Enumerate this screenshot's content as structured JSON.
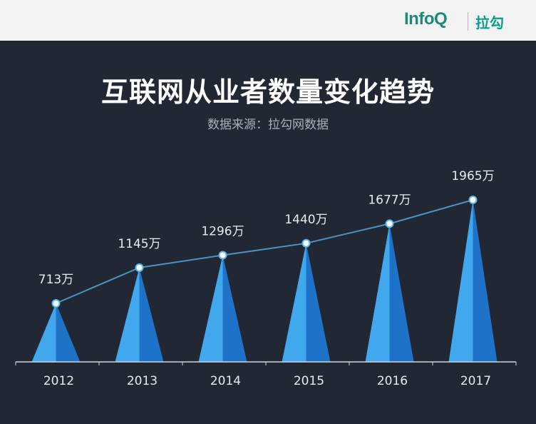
{
  "header": {
    "logo_infoq": "InfoQ",
    "logo_lagou": "拉勾",
    "brand_color": "#1c8a7a"
  },
  "chart_data": {
    "type": "line",
    "title": "互联网从业者数量变化趋势",
    "subtitle": "数据来源：拉勾网数据",
    "categories": [
      "2012",
      "2013",
      "2014",
      "2015",
      "2016",
      "2017"
    ],
    "values": [
      713,
      1145,
      1296,
      1440,
      1677,
      1965
    ],
    "labels": [
      "713万",
      "1145万",
      "1296万",
      "1440万",
      "1677万",
      "1965万"
    ],
    "unit": "万",
    "colors": {
      "background": "#222833",
      "cone_light": "#41a8ee",
      "cone_dark": "#1e73c8",
      "line": "#4a93c4",
      "point_fill": "#ffffff",
      "point_stroke": "#5ab7e6",
      "axis": "#cfd6de",
      "text": "#e8ebef"
    }
  }
}
